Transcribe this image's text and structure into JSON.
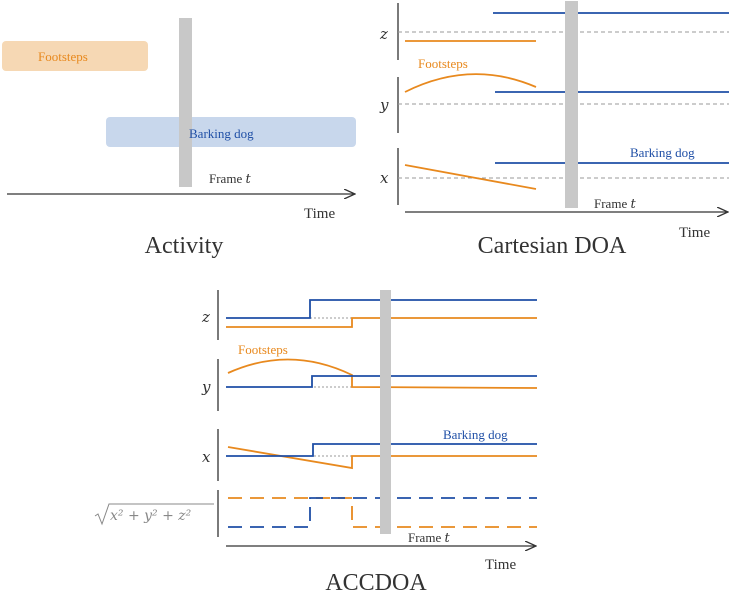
{
  "colors": {
    "footsteps": "#e8891e",
    "barking_dog": "#1f4fa6",
    "footsteps_bar": "#f6d8b4",
    "barking_dog_bar": "#c8d7ec",
    "frame_marker": "#c8c8c8",
    "axis": "#333333",
    "reference_line": "#9a9a9a",
    "caption": "#333333"
  },
  "panels": {
    "activity": {
      "caption": "Activity",
      "time_label": "Time",
      "frame_label": "Frame",
      "frame_symbol": "t",
      "footsteps_label": "Footsteps",
      "barking_dog_label": "Barking dog"
    },
    "cartesian": {
      "caption": "Cartesian DOA",
      "time_label": "Time",
      "frame_label": "Frame",
      "frame_symbol": "t",
      "axis_z": "z",
      "axis_y": "y",
      "axis_x": "x",
      "footsteps_label": "Footsteps",
      "barking_dog_label": "Barking dog"
    },
    "accdoa": {
      "caption": "ACCDOA",
      "time_label": "Time",
      "frame_label": "Frame",
      "frame_symbol": "t",
      "axis_z": "z",
      "axis_y": "y",
      "axis_x": "x",
      "norm_label": "x² + y² + z²",
      "footsteps_label": "Footsteps",
      "barking_dog_label": "Barking dog"
    }
  }
}
